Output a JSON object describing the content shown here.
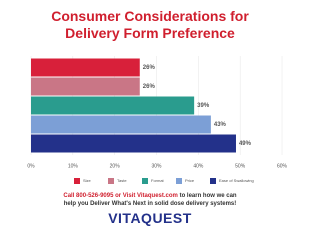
{
  "chart_data": {
    "type": "bar",
    "orientation": "horizontal",
    "title": "Consumer Considerations for Delivery Form Preference",
    "series": [
      {
        "name": "Size",
        "color": "#d8203a",
        "values": [
          26
        ],
        "value_labels": [
          "26%"
        ]
      },
      {
        "name": "Taste",
        "color": "#c97686",
        "values": [
          26
        ],
        "value_labels": [
          "26%"
        ]
      },
      {
        "name": "Format",
        "color": "#2a9c8e",
        "values": [
          39
        ],
        "value_labels": [
          "39%"
        ]
      },
      {
        "name": "Price",
        "color": "#7c9fd6",
        "values": [
          43
        ],
        "value_labels": [
          "43%"
        ]
      },
      {
        "name": "Ease of Swallowing",
        "color": "#23318a",
        "values": [
          49
        ],
        "value_labels": [
          "49%"
        ]
      }
    ],
    "xlim": [
      0,
      60
    ],
    "xticks": [
      {
        "value": 0,
        "label": "0%"
      },
      {
        "value": 10,
        "label": "10%"
      },
      {
        "value": 20,
        "label": "20%"
      },
      {
        "value": 30,
        "label": "30%"
      },
      {
        "value": 40,
        "label": "40%"
      },
      {
        "value": 50,
        "label": "50%"
      },
      {
        "value": 60,
        "label": "60%"
      }
    ],
    "grid": true
  },
  "footer": {
    "call": "Call 800-526-9095 or Visit Vitaquest.com",
    "text": "to learn how we can help you Deliver What's Next in solid dose delivery systems!",
    "logo": "VITAQUEST"
  }
}
